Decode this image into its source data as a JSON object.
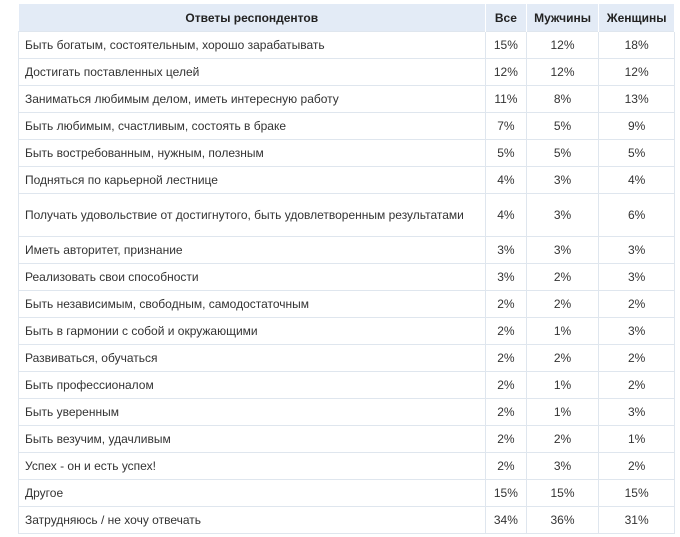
{
  "table": {
    "headers": [
      "Ответы респондентов",
      "Все",
      "Мужчины",
      "Женщины"
    ],
    "rows": [
      [
        "Быть богатым, состоятельным, хорошо зарабатывать",
        "15%",
        "12%",
        "18%"
      ],
      [
        "Достигать поставленных целей",
        "12%",
        "12%",
        "12%"
      ],
      [
        "Заниматься любимым делом, иметь интересную работу",
        "11%",
        "8%",
        "13%"
      ],
      [
        "Быть любимым, счастливым, состоять в браке",
        "7%",
        "5%",
        "9%"
      ],
      [
        "Быть востребованным, нужным, полезным",
        "5%",
        "5%",
        "5%"
      ],
      [
        "Подняться по карьерной лестнице",
        "4%",
        "3%",
        "4%"
      ],
      [
        "Получать удовольствие от достигнутого, быть удовлетворенным результатами",
        "4%",
        "3%",
        "6%"
      ],
      [
        "Иметь авторитет, признание",
        "3%",
        "3%",
        "3%"
      ],
      [
        "Реализовать свои способности",
        "3%",
        "2%",
        "3%"
      ],
      [
        "Быть независимым, свободным, самодостаточным",
        "2%",
        "2%",
        "2%"
      ],
      [
        "Быть в гармонии с собой и окружающими",
        "2%",
        "1%",
        "3%"
      ],
      [
        "Развиваться, обучаться",
        "2%",
        "2%",
        "2%"
      ],
      [
        "Быть профессионалом",
        "2%",
        "1%",
        "2%"
      ],
      [
        "Быть уверенным",
        "2%",
        "1%",
        "3%"
      ],
      [
        "Быть везучим, удачливым",
        "2%",
        "2%",
        "1%"
      ],
      [
        "Успех - он и есть успех!",
        "2%",
        "3%",
        "2%"
      ],
      [
        "Другое",
        "15%",
        "15%",
        "15%"
      ],
      [
        "Затрудняюсь / не хочу отвечать",
        "34%",
        "36%",
        "31%"
      ]
    ]
  }
}
